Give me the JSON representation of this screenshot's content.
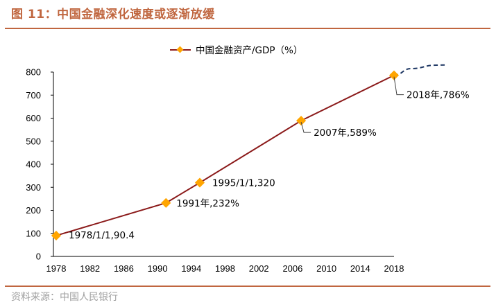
{
  "header": {
    "title": "图 11：中国金融深化速度或逐渐放缓"
  },
  "footer": {
    "source": "资料来源：中国人民银行"
  },
  "colors": {
    "accent": "#c0663f",
    "line": "#8b1a1a",
    "marker": "#ffa500",
    "projection": "#1f3864",
    "source_text": "#a0a0a0"
  },
  "chart_data": {
    "type": "line",
    "title": "",
    "xlabel": "",
    "ylabel": "",
    "xlim": [
      1978,
      2018
    ],
    "ylim": [
      0,
      800
    ],
    "x_ticks": [
      "1978",
      "1982",
      "1986",
      "1990",
      "1994",
      "1998",
      "2002",
      "2006",
      "2010",
      "2014",
      "2018"
    ],
    "y_ticks": [
      "0",
      "100",
      "200",
      "300",
      "400",
      "500",
      "600",
      "700",
      "800"
    ],
    "grid": false,
    "legend": {
      "position": "top-center",
      "entries": [
        "中国金融资产/GDP（%）"
      ]
    },
    "series": [
      {
        "name": "中国金融资产/GDP（%）",
        "style": "solid",
        "points": [
          {
            "x": 1978,
            "y": 90.4
          },
          {
            "x": 1991,
            "y": 232
          },
          {
            "x": 1995,
            "y": 320
          },
          {
            "x": 2007,
            "y": 589
          },
          {
            "x": 2018,
            "y": 786
          }
        ]
      },
      {
        "name": "projection",
        "style": "dashed",
        "points": [
          {
            "x": 2018,
            "y": 786
          },
          {
            "x": 2020,
            "y": 815
          },
          {
            "x": 2023,
            "y": 830
          },
          {
            "x": 2024,
            "y": 831
          }
        ]
      }
    ],
    "annotations": [
      {
        "x": 1978,
        "y": 90.4,
        "text": "1978/1/1,90.4"
      },
      {
        "x": 1991,
        "y": 232,
        "text": "1991年,232%"
      },
      {
        "x": 1995,
        "y": 320,
        "text": "1995/1/1,320"
      },
      {
        "x": 2007,
        "y": 589,
        "text": "2007年,589%"
      },
      {
        "x": 2018,
        "y": 786,
        "text": "2018年,786%"
      }
    ]
  }
}
